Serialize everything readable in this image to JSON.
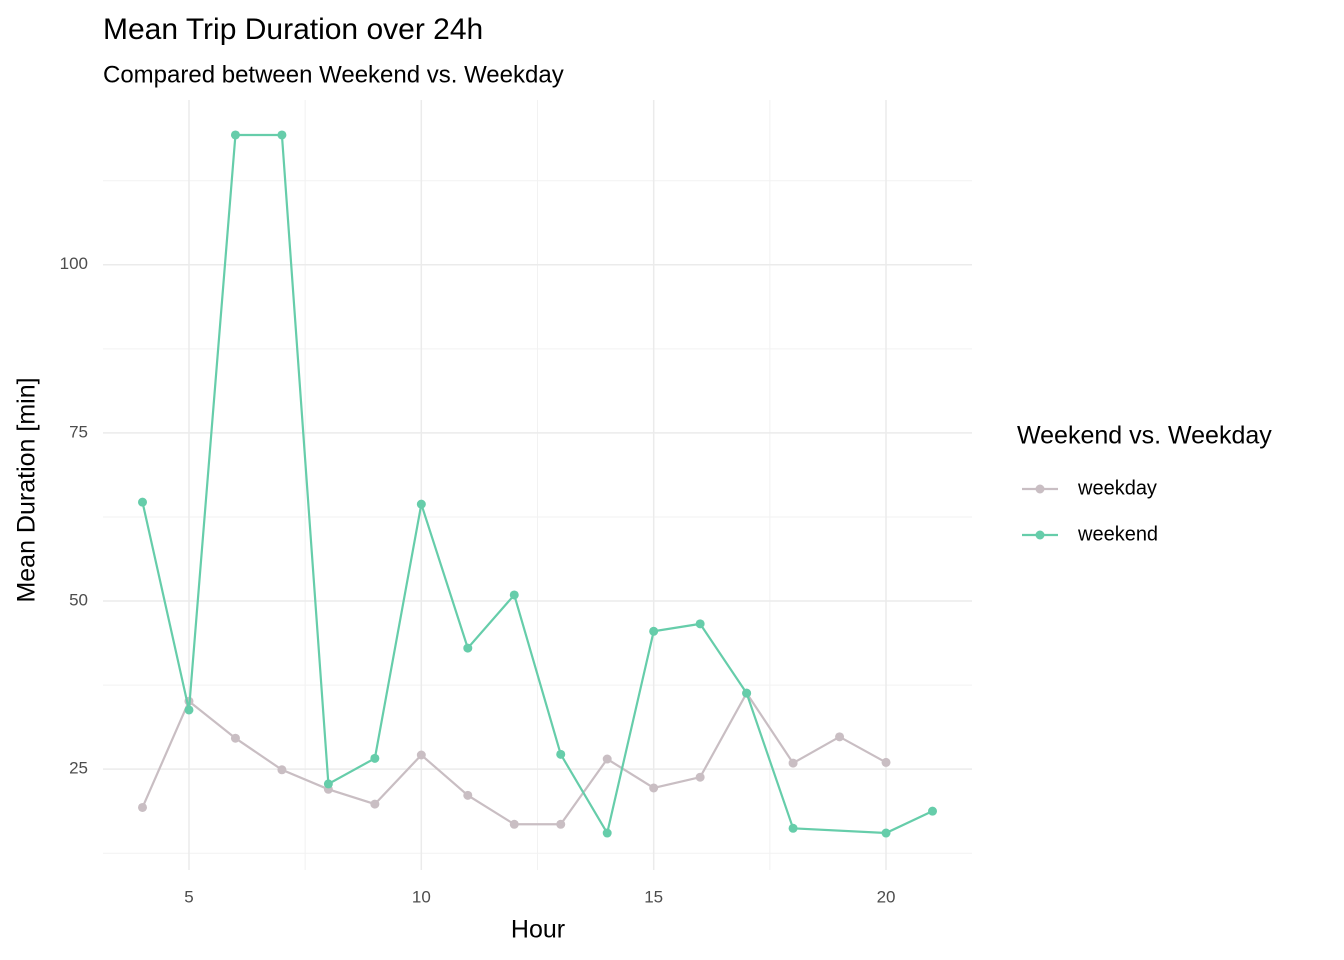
{
  "chart_data": {
    "type": "line",
    "title": "Mean Trip Duration over 24h",
    "subtitle": "Compared between Weekend vs. Weekday",
    "x_label": "Hour",
    "y_label": "Mean Duration [min]",
    "legend_title": "Weekend vs. Weekday",
    "legend_position": "right",
    "grid": true,
    "xlim": [
      3.15,
      21.85
    ],
    "xticks": [
      5,
      10,
      15,
      20
    ],
    "ylim": [
      10.0,
      124.5
    ],
    "yticks": [
      25,
      50,
      75,
      100
    ],
    "series": [
      {
        "name": "weekday",
        "color": "#c9bec3",
        "x": [
          4,
          5,
          6,
          7,
          8,
          9,
          10,
          11,
          12,
          13,
          14,
          15,
          16,
          17,
          18,
          19,
          20
        ],
        "values": [
          19.3,
          35.1,
          29.6,
          24.9,
          22.0,
          19.8,
          27.1,
          21.1,
          16.8,
          16.8,
          26.5,
          22.2,
          23.8,
          36.3,
          25.9,
          29.8,
          26.0
        ]
      },
      {
        "name": "weekend",
        "color": "#66cdaa",
        "x": [
          4,
          5,
          6,
          7,
          8,
          9,
          10,
          11,
          12,
          13,
          14,
          15,
          16,
          17,
          18,
          20,
          21
        ],
        "values": [
          64.7,
          33.8,
          119.3,
          119.3,
          22.8,
          26.6,
          64.4,
          43.0,
          50.9,
          27.2,
          15.5,
          45.5,
          46.6,
          36.3,
          16.2,
          15.5,
          18.75
        ]
      }
    ]
  }
}
